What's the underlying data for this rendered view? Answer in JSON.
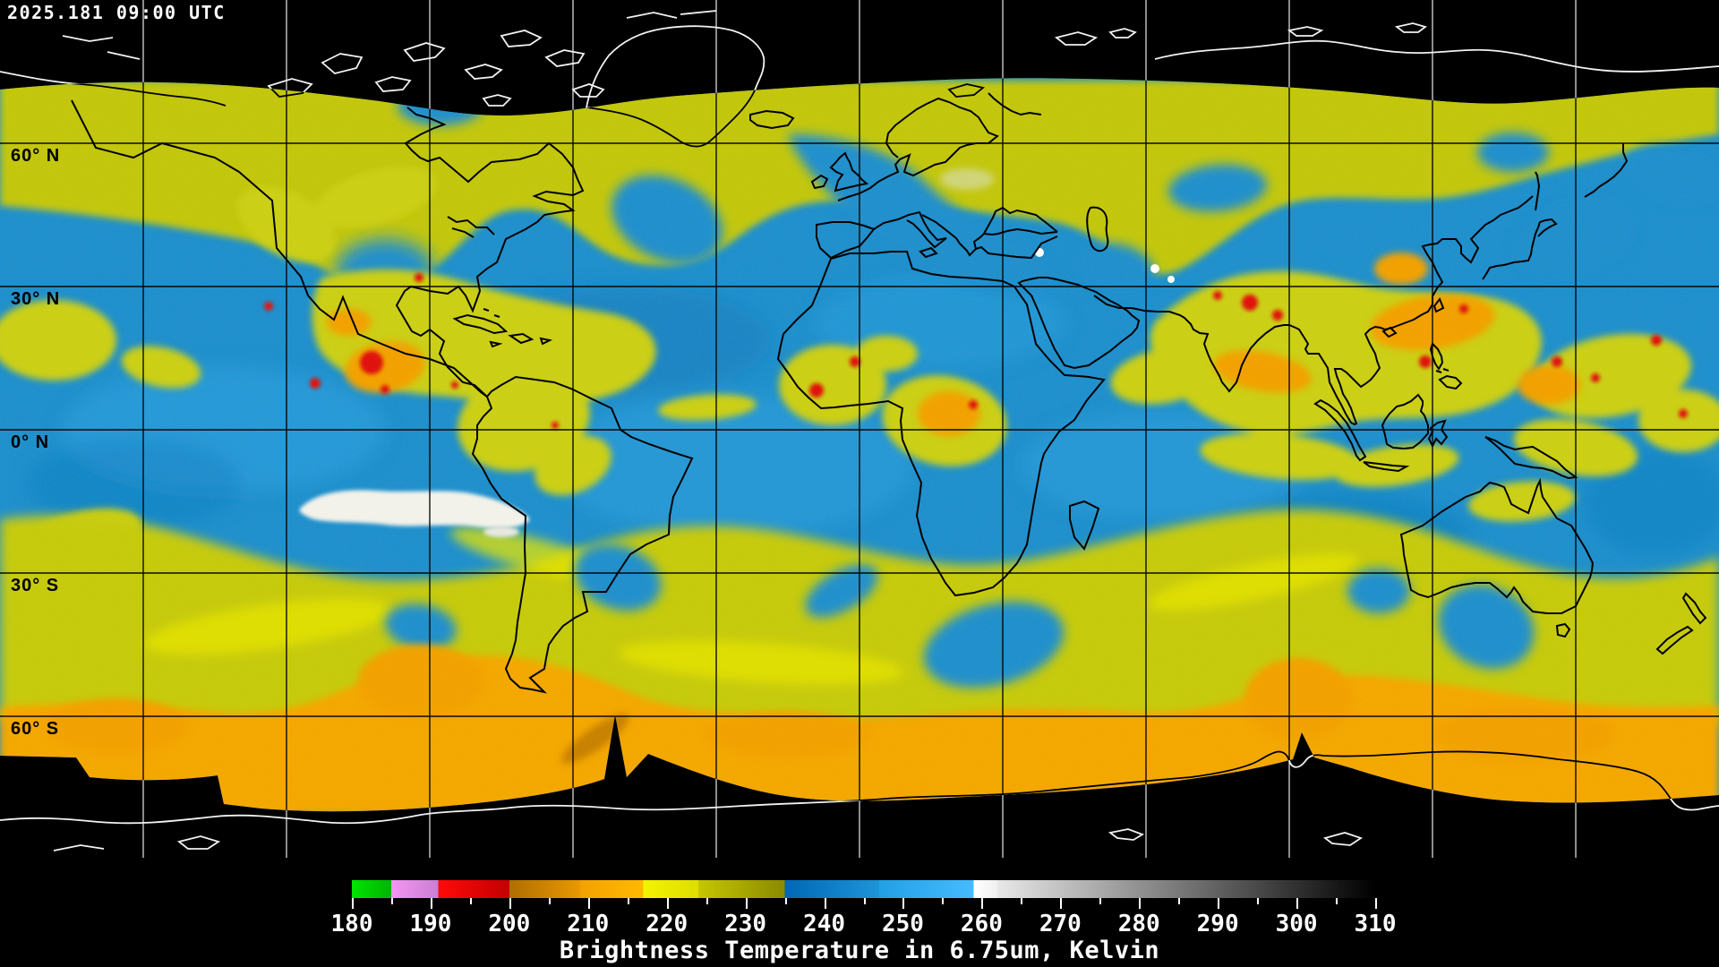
{
  "header": {
    "timestamp": "2025.181 09:00 UTC"
  },
  "map": {
    "latitude_labels": [
      "60° N",
      "30° N",
      "0° N",
      "30° S",
      "60° S"
    ],
    "longitude_gridline_spacing_deg": 30,
    "projection": "equirectangular global composite"
  },
  "colorbar": {
    "caption": "Brightness Temperature in 6.75um, Kelvin",
    "unit": "Kelvin",
    "min": 180,
    "max": 310,
    "major_ticks": [
      180,
      190,
      200,
      210,
      220,
      230,
      240,
      250,
      260,
      270,
      280,
      290,
      300,
      310
    ],
    "minor_tick_step": 5,
    "segments": [
      {
        "from": 180,
        "to": 185,
        "color_start": "#00e400",
        "color_end": "#00b400"
      },
      {
        "from": 185,
        "to": 191,
        "color_start": "#f495f4",
        "color_end": "#c97fd2"
      },
      {
        "from": 191,
        "to": 200,
        "color_start": "#ff0a0a",
        "color_end": "#c30000"
      },
      {
        "from": 200,
        "to": 209,
        "color_start": "#b06e00",
        "color_end": "#e89800"
      },
      {
        "from": 209,
        "to": 217,
        "color_start": "#f2a200",
        "color_end": "#ffb900"
      },
      {
        "from": 217,
        "to": 224,
        "color_start": "#f4f400",
        "color_end": "#dede00"
      },
      {
        "from": 224,
        "to": 235,
        "color_start": "#c6c600",
        "color_end": "#8a8a00"
      },
      {
        "from": 235,
        "to": 247,
        "color_start": "#0068b4",
        "color_end": "#1e94d8"
      },
      {
        "from": 247,
        "to": 259,
        "color_start": "#22a0e4",
        "color_end": "#46bcff"
      },
      {
        "from": 259,
        "to": 262,
        "color_start": "#ffffff",
        "color_end": "#f0f0f0"
      },
      {
        "from": 262,
        "to": 310,
        "color_start": "#e8e8e8",
        "color_end": "#000000"
      }
    ]
  },
  "chart_data": {
    "type": "heatmap",
    "title": "Brightness Temperature in 6.75um, Kelvin",
    "timestamp": "2025.181 09:00 UTC",
    "colorbar_range": [
      180,
      310
    ],
    "colorbar_ticks": [
      180,
      190,
      200,
      210,
      220,
      230,
      240,
      250,
      260,
      270,
      280,
      290,
      300,
      310
    ],
    "latitude_gridlines_deg": [
      60,
      30,
      0,
      -30,
      -60
    ],
    "longitude_gridline_spacing_deg": 30,
    "legend_position": "bottom",
    "value_meaning": {
      "cold_high_cloud_K": "180-220 (green/violet/red/orange/yellow)",
      "moist_mid_upper_troposphere_K": "220-235 (olive/yellow)",
      "dry_upper_troposphere_K": "235-259 (blue)",
      "very_dry_warm_K": "259-310 (white to black)"
    }
  }
}
